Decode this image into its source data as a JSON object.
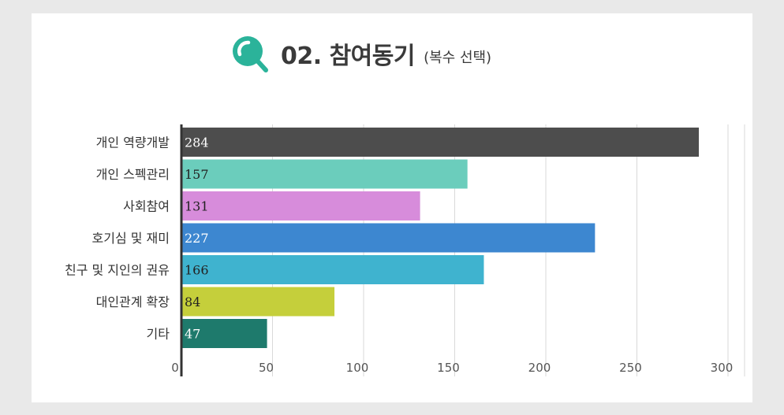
{
  "header": {
    "title": "02. 참여동기",
    "subtitle": "(복수 선택)",
    "icon": "search-magnifier-icon",
    "icon_color": "#2bb39a"
  },
  "chart_data": {
    "type": "bar",
    "orientation": "horizontal",
    "categories": [
      "개인 역량개발",
      "개인 스펙관리",
      "사회참여",
      "호기심 및 재미",
      "친구 및 지인의 권유",
      "대인관계 확장",
      "기타"
    ],
    "values": [
      284,
      157,
      131,
      227,
      166,
      84,
      47
    ],
    "colors": [
      "#4d4d4d",
      "#6bcdbc",
      "#d78cdb",
      "#3d87d0",
      "#3fb3cf",
      "#c5cf3b",
      "#1e7a6c"
    ],
    "label_colors": [
      "#ffffff",
      "#222222",
      "#222222",
      "#ffffff",
      "#222222",
      "#222222",
      "#ffffff"
    ],
    "xlim": [
      0,
      300
    ],
    "xticks": [
      "0",
      "50",
      "100",
      "150",
      "200",
      "250",
      "300"
    ],
    "grid": true,
    "legend": "none",
    "title": "",
    "xlabel": "",
    "ylabel": ""
  }
}
